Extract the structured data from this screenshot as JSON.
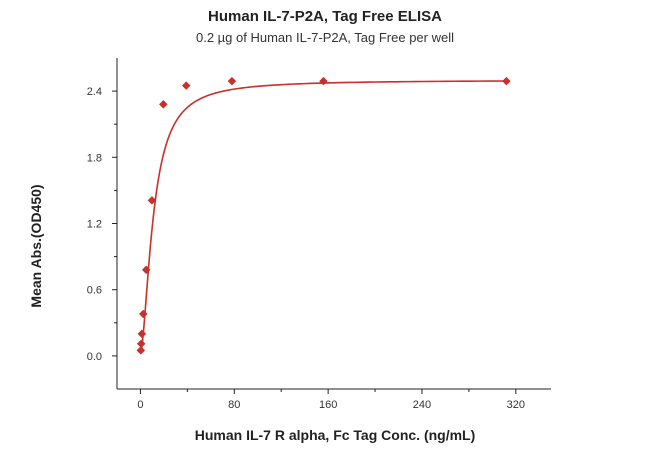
{
  "chart_data": {
    "type": "scatter",
    "title": "Human IL-7-P2A, Tag Free ELISA",
    "subtitle": "0.2 µg of Human IL-7-P2A, Tag Free per well",
    "xlabel": "Human IL-7 R alpha, Fc Tag Conc. (ng/mL)",
    "ylabel": "Mean Abs.(OD450)",
    "xlim": [
      -20,
      350
    ],
    "ylim": [
      -0.3,
      2.7
    ],
    "xticks": [
      0,
      80,
      160,
      240,
      320
    ],
    "yticks": [
      0.0,
      0.6,
      1.2,
      1.8,
      2.4
    ],
    "xtick_labels": [
      "0",
      "80",
      "160",
      "240",
      "320"
    ],
    "ytick_labels": [
      "0.0",
      "0.6",
      "1.2",
      "1.8",
      "2.4"
    ],
    "grid": false,
    "colors": {
      "series": "#c8302c"
    },
    "series": [
      {
        "marker": "diamond",
        "x": [
          0.3,
          0.6,
          1.2,
          2.4,
          4.9,
          9.8,
          19.5,
          39,
          78,
          156,
          312
        ],
        "y": [
          0.05,
          0.11,
          0.2,
          0.38,
          0.78,
          1.41,
          2.28,
          2.45,
          2.49,
          2.49,
          2.49
        ]
      }
    ],
    "fit_curve": {
      "model": "4PL",
      "bottom": 0.03,
      "top": 2.5,
      "ec50": 11,
      "hill": 1.7
    }
  }
}
